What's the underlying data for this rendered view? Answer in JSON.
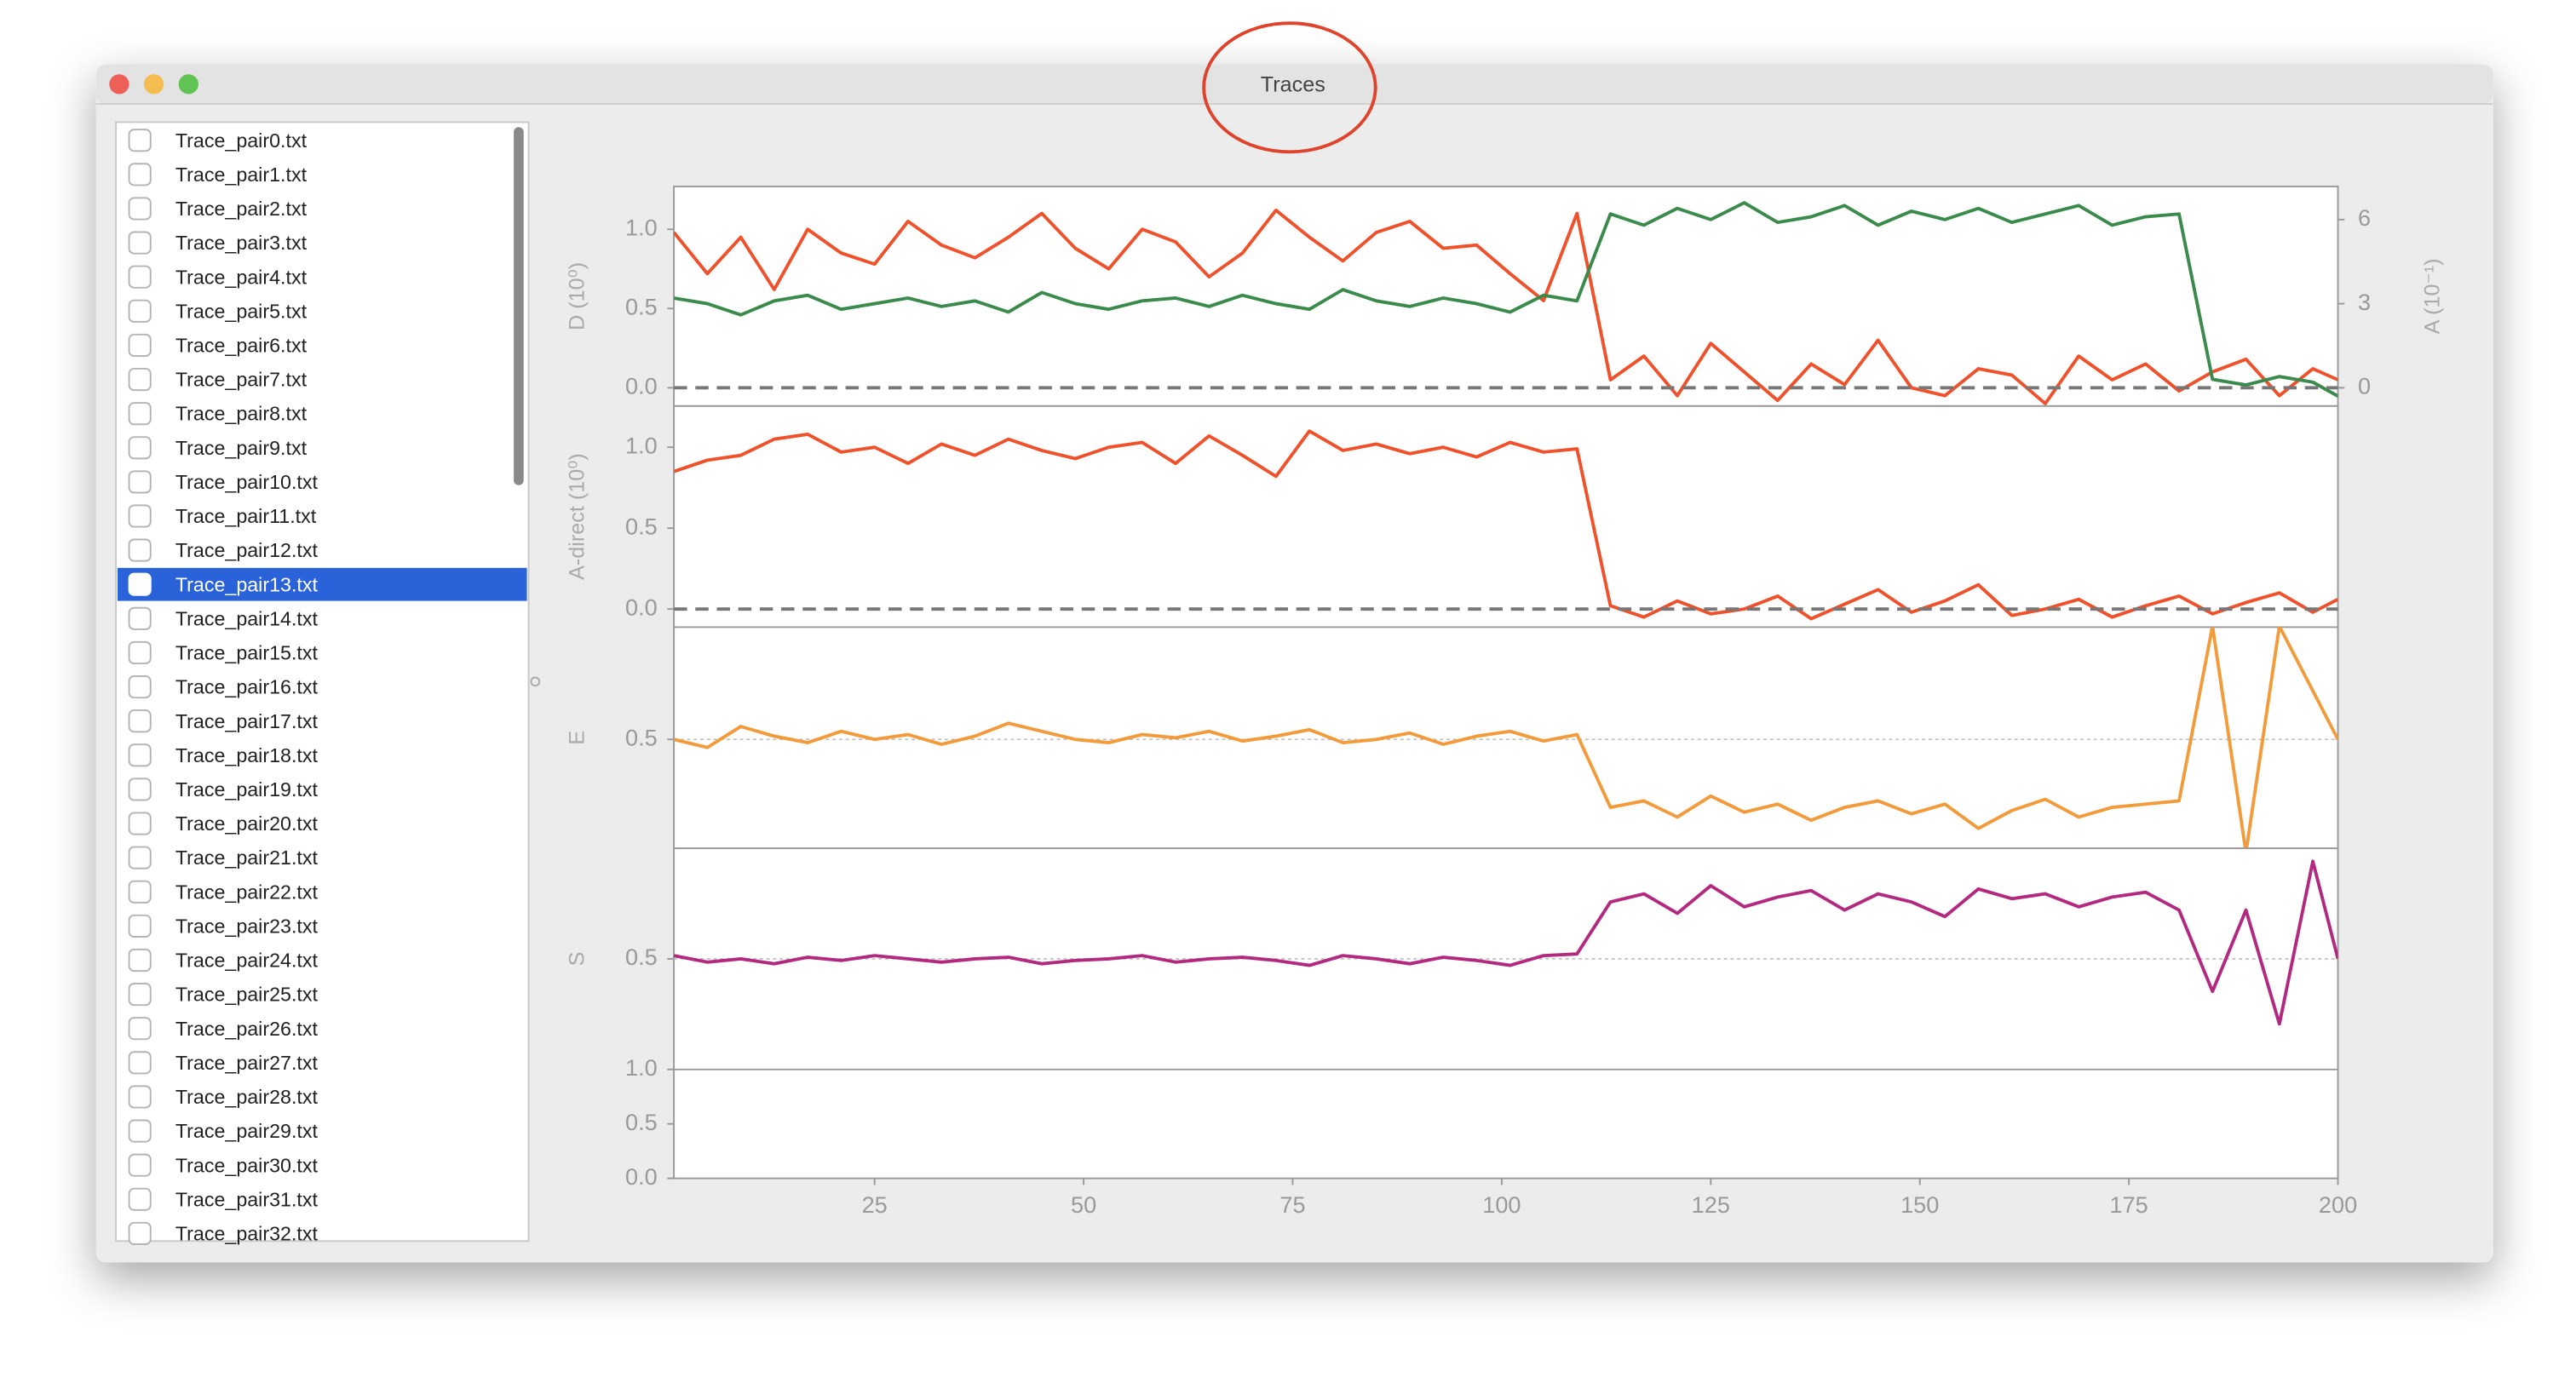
{
  "window": {
    "title": "Traces"
  },
  "sidebar": {
    "files": [
      "Trace_pair0.txt",
      "Trace_pair1.txt",
      "Trace_pair2.txt",
      "Trace_pair3.txt",
      "Trace_pair4.txt",
      "Trace_pair5.txt",
      "Trace_pair6.txt",
      "Trace_pair7.txt",
      "Trace_pair8.txt",
      "Trace_pair9.txt",
      "Trace_pair10.txt",
      "Trace_pair11.txt",
      "Trace_pair12.txt",
      "Trace_pair13.txt",
      "Trace_pair14.txt",
      "Trace_pair15.txt",
      "Trace_pair16.txt",
      "Trace_pair17.txt",
      "Trace_pair18.txt",
      "Trace_pair19.txt",
      "Trace_pair20.txt",
      "Trace_pair21.txt",
      "Trace_pair22.txt",
      "Trace_pair23.txt",
      "Trace_pair24.txt",
      "Trace_pair25.txt",
      "Trace_pair26.txt",
      "Trace_pair27.txt",
      "Trace_pair28.txt",
      "Trace_pair29.txt",
      "Trace_pair30.txt",
      "Trace_pair31.txt",
      "Trace_pair32.txt"
    ],
    "selected": 13
  },
  "chart_data": [
    {
      "type": "line",
      "ylabel": "D (10⁰)",
      "y2label": "A (10⁻¹)",
      "x": [
        1,
        5,
        9,
        13,
        17,
        21,
        25,
        29,
        33,
        37,
        41,
        45,
        49,
        53,
        57,
        61,
        65,
        69,
        73,
        77,
        81,
        85,
        89,
        93,
        97,
        101,
        105,
        109,
        113,
        117,
        121,
        125,
        129,
        133,
        137,
        141,
        145,
        149,
        153,
        157,
        161,
        165,
        169,
        173,
        177,
        181,
        185,
        189,
        193,
        197,
        200
      ],
      "xlim": [
        1,
        200
      ],
      "ylim": [
        -0.115,
        1.27
      ],
      "yticks": [
        {
          "value": 0,
          "label": "0.0"
        },
        0.5,
        {
          "value": 1,
          "label": "1.0"
        }
      ],
      "y2lim": [
        -0.65,
        7.18
      ],
      "y2ticks": [
        0,
        3,
        6
      ],
      "reference_line": 0,
      "series": [
        {
          "color": "#f0502a",
          "values": [
            0.98,
            0.72,
            0.95,
            0.62,
            1.0,
            0.85,
            0.78,
            1.05,
            0.9,
            0.82,
            0.95,
            1.1,
            0.88,
            0.75,
            1.0,
            0.92,
            0.7,
            0.85,
            1.12,
            0.95,
            0.8,
            0.98,
            1.05,
            0.88,
            0.9,
            0.72,
            0.55,
            1.1,
            0.05,
            0.2,
            -0.05,
            0.28,
            0.1,
            -0.08,
            0.15,
            0.02,
            0.3,
            0.0,
            -0.05,
            0.12,
            0.08,
            -0.1,
            0.2,
            0.05,
            0.15,
            -0.02,
            0.1,
            0.18,
            -0.05,
            0.12,
            0.05
          ]
        },
        {
          "color": "#3a8a4c",
          "axis": "y2",
          "values": [
            3.2,
            3.0,
            2.6,
            3.1,
            3.3,
            2.8,
            3.0,
            3.2,
            2.9,
            3.1,
            2.7,
            3.4,
            3.0,
            2.8,
            3.1,
            3.2,
            2.9,
            3.3,
            3.0,
            2.8,
            3.5,
            3.1,
            2.9,
            3.2,
            3.0,
            2.7,
            3.3,
            3.1,
            6.2,
            5.8,
            6.4,
            6.0,
            6.6,
            5.9,
            6.1,
            6.5,
            5.8,
            6.3,
            6.0,
            6.4,
            5.9,
            6.2,
            6.5,
            5.8,
            6.1,
            6.2,
            0.3,
            0.1,
            0.4,
            0.2,
            -0.3
          ]
        }
      ]
    },
    {
      "type": "line",
      "ylabel": "A-direct (10⁰)",
      "x": [
        1,
        5,
        9,
        13,
        17,
        21,
        25,
        29,
        33,
        37,
        41,
        45,
        49,
        53,
        57,
        61,
        65,
        69,
        73,
        77,
        81,
        85,
        89,
        93,
        97,
        101,
        105,
        109,
        113,
        117,
        121,
        125,
        129,
        133,
        137,
        141,
        145,
        149,
        153,
        157,
        161,
        165,
        169,
        173,
        177,
        181,
        185,
        189,
        193,
        197,
        200
      ],
      "xlim": [
        1,
        200
      ],
      "ylim": [
        -0.112,
        1.255
      ],
      "yticks": [
        {
          "value": 0,
          "label": "0.0"
        },
        0.5,
        {
          "value": 1,
          "label": "1.0"
        }
      ],
      "reference_line": 0,
      "series": [
        {
          "color": "#f0502a",
          "values": [
            0.85,
            0.92,
            0.95,
            1.05,
            1.08,
            0.97,
            1.0,
            0.9,
            1.02,
            0.95,
            1.05,
            0.98,
            0.93,
            1.0,
            1.03,
            0.9,
            1.07,
            0.95,
            0.82,
            1.1,
            0.98,
            1.02,
            0.96,
            1.0,
            0.94,
            1.03,
            0.97,
            0.99,
            0.02,
            -0.05,
            0.05,
            -0.03,
            0.0,
            0.08,
            -0.06,
            0.03,
            0.12,
            -0.02,
            0.05,
            0.15,
            -0.04,
            0.0,
            0.06,
            -0.05,
            0.02,
            0.08,
            -0.03,
            0.04,
            0.1,
            -0.02,
            0.06
          ]
        }
      ]
    },
    {
      "type": "line",
      "ylabel": "E",
      "x": [
        1,
        5,
        9,
        13,
        17,
        21,
        25,
        29,
        33,
        37,
        41,
        45,
        49,
        53,
        57,
        61,
        65,
        69,
        73,
        77,
        81,
        85,
        89,
        93,
        97,
        101,
        105,
        109,
        113,
        117,
        121,
        125,
        129,
        133,
        137,
        141,
        145,
        149,
        153,
        157,
        161,
        165,
        169,
        173,
        177,
        181,
        185,
        189,
        193,
        197,
        200
      ],
      "xlim": [
        1,
        200
      ],
      "ylim": [
        -0.173,
        1.194
      ],
      "yticks": [
        0.5
      ],
      "grid": true,
      "series": [
        {
          "color": "#f39a3a",
          "values": [
            0.5,
            0.45,
            0.58,
            0.52,
            0.48,
            0.55,
            0.5,
            0.53,
            0.47,
            0.52,
            0.6,
            0.55,
            0.5,
            0.48,
            0.53,
            0.51,
            0.55,
            0.49,
            0.52,
            0.56,
            0.48,
            0.5,
            0.54,
            0.47,
            0.52,
            0.55,
            0.49,
            0.53,
            0.08,
            0.12,
            0.02,
            0.15,
            0.05,
            0.1,
            0.0,
            0.08,
            0.12,
            0.04,
            0.1,
            -0.05,
            0.06,
            0.13,
            0.02,
            0.08,
            0.1,
            0.12,
            1.2,
            -0.2,
            1.2,
            0.8,
            0.5
          ]
        }
      ]
    },
    {
      "type": "line",
      "ylabel": "S",
      "x": [
        1,
        5,
        9,
        13,
        17,
        21,
        25,
        29,
        33,
        37,
        41,
        45,
        49,
        53,
        57,
        61,
        65,
        69,
        73,
        77,
        81,
        85,
        89,
        93,
        97,
        101,
        105,
        109,
        113,
        117,
        121,
        125,
        129,
        133,
        137,
        141,
        145,
        149,
        153,
        157,
        161,
        165,
        169,
        173,
        177,
        181,
        185,
        189,
        193,
        197,
        200
      ],
      "xlim": [
        1,
        200
      ],
      "ylim": [
        -0.18,
        1.18
      ],
      "yticks": [
        0.5
      ],
      "grid": true,
      "series": [
        {
          "color": "#b3297f",
          "values": [
            0.52,
            0.48,
            0.5,
            0.47,
            0.51,
            0.49,
            0.52,
            0.5,
            0.48,
            0.5,
            0.51,
            0.47,
            0.49,
            0.5,
            0.52,
            0.48,
            0.5,
            0.51,
            0.49,
            0.46,
            0.52,
            0.5,
            0.47,
            0.51,
            0.49,
            0.46,
            0.52,
            0.53,
            0.85,
            0.9,
            0.78,
            0.95,
            0.82,
            0.88,
            0.92,
            0.8,
            0.9,
            0.85,
            0.76,
            0.93,
            0.87,
            0.9,
            0.82,
            0.88,
            0.91,
            0.8,
            0.3,
            0.8,
            0.1,
            1.1,
            0.5
          ]
        }
      ]
    },
    {
      "type": "line",
      "xlim": [
        1,
        200
      ],
      "xticks": [
        25,
        50,
        75,
        100,
        125,
        150,
        175,
        200
      ],
      "ylim": [
        0,
        1
      ],
      "yticks": [
        {
          "value": 0,
          "label": "0.0"
        },
        0.5,
        {
          "value": 1,
          "label": "1.0"
        }
      ],
      "series": []
    }
  ]
}
